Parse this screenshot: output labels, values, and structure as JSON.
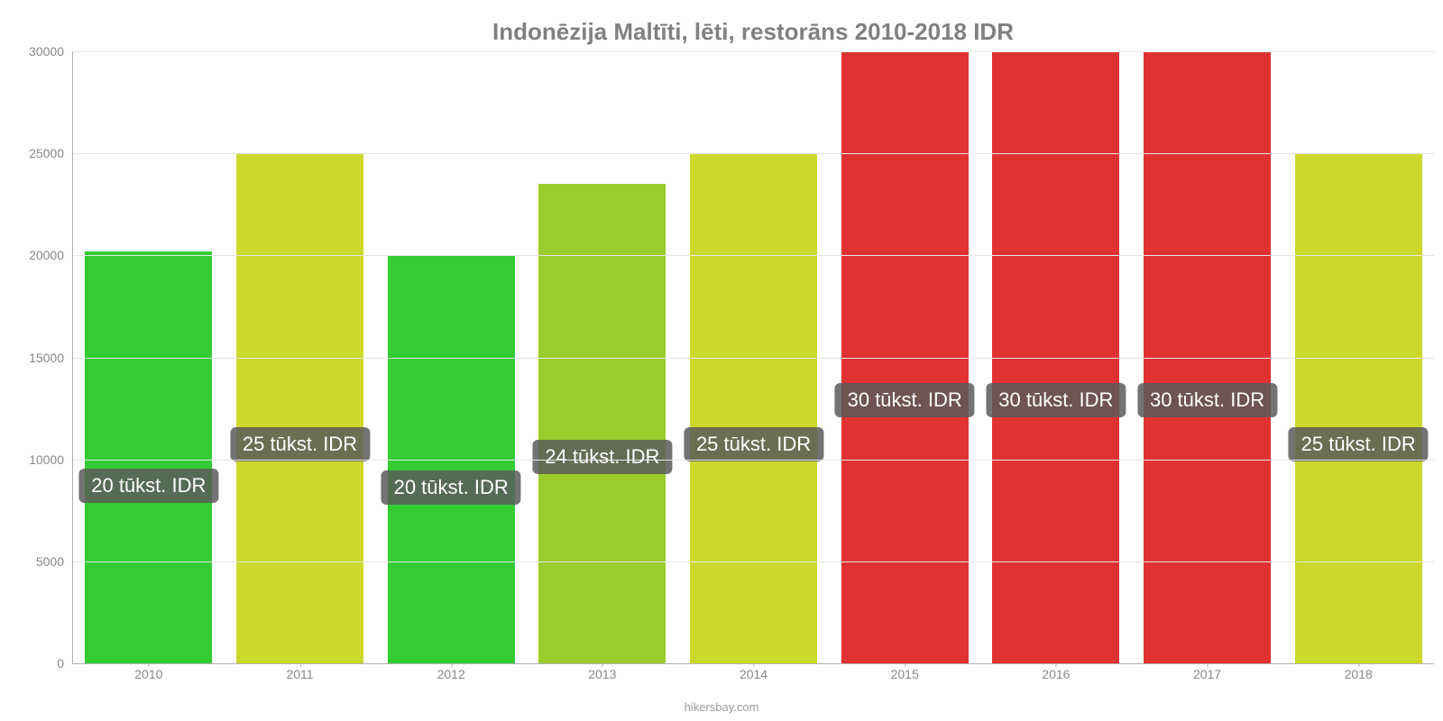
{
  "chart": {
    "type": "bar",
    "title": "Indonēzija Maltīti, lēti, restorāns 2010-2018 IDR",
    "title_color": "#808080",
    "title_fontsize": 26,
    "background_color": "#ffffff",
    "axis_line_color": "#b0b0b0",
    "grid_color": "#e5e5e5",
    "tick_font_color": "#888888",
    "tick_fontsize": 14,
    "ylim": [
      0,
      30000
    ],
    "yticks": [
      0,
      5000,
      10000,
      15000,
      20000,
      25000,
      30000
    ],
    "bar_width_ratio": 0.84,
    "categories": [
      "2010",
      "2011",
      "2012",
      "2013",
      "2014",
      "2015",
      "2016",
      "2017",
      "2018"
    ],
    "values": [
      20200,
      25000,
      20000,
      23500,
      25000,
      30000,
      30000,
      30000,
      25000
    ],
    "bar_colors": [
      "#33cc33",
      "#ccd92b",
      "#33cc33",
      "#9acc2b",
      "#ccd92b",
      "#e03232",
      "#e03232",
      "#e03232",
      "#ccd92b"
    ],
    "value_labels": [
      "20 tūkst. IDR",
      "25 tūkst. IDR",
      "20 tūkst. IDR",
      "24 tūkst. IDR",
      "25 tūkst. IDR",
      "30 tūkst. IDR",
      "30 tūkst. IDR",
      "30 tūkst. IDR",
      "25 tūkst. IDR"
    ],
    "value_label_bg": "rgba(90,90,90,0.85)",
    "value_label_fg": "#ffffff",
    "value_label_fontsize": 22,
    "value_label_offset_pct": 43,
    "credit": "hikersbay.com",
    "credit_color": "#9a9a9a"
  }
}
